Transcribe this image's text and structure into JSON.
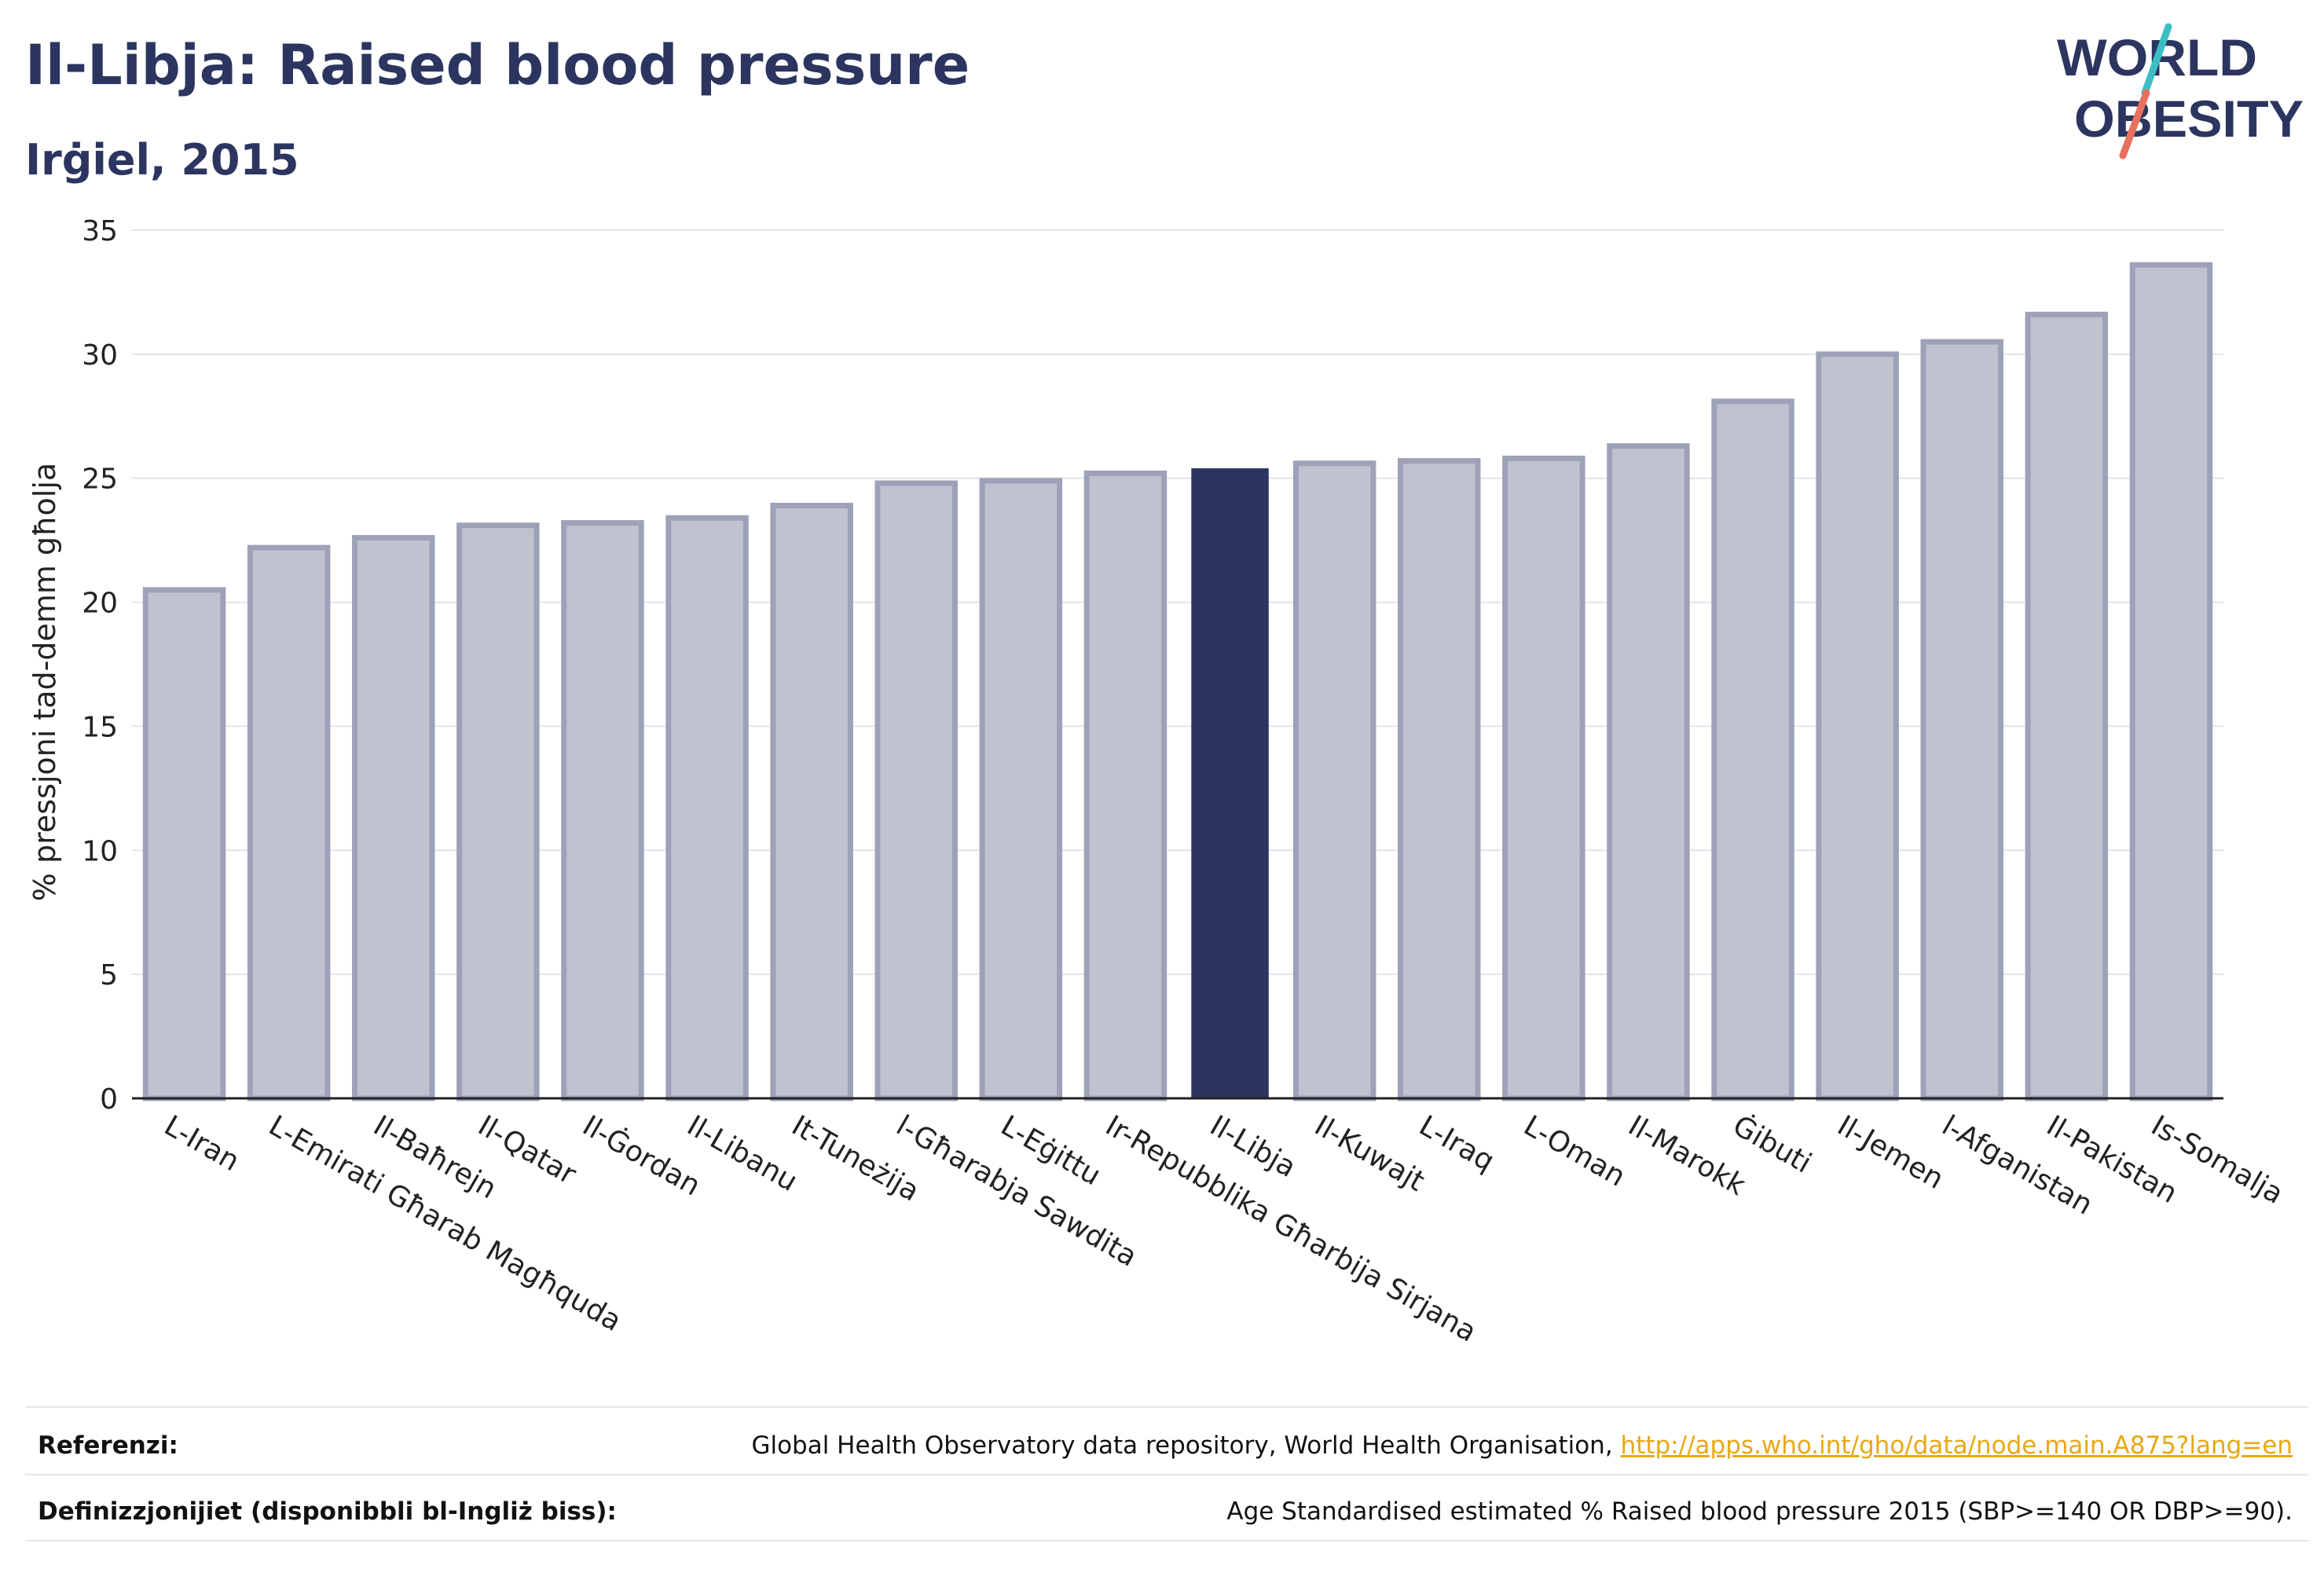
{
  "header": {
    "title": "Il-Libja: Raised blood pressure",
    "subtitle": "Irġiel, 2015"
  },
  "logo": {
    "line1": "WORLD",
    "line2": "OBESITY",
    "text_color": "#2b3560",
    "slash_colors": [
      "#3bbfc4",
      "#e8705f"
    ]
  },
  "chart_data": {
    "type": "bar",
    "ylabel": "% pressjoni tad-demm għolja",
    "ylim": [
      0,
      35
    ],
    "yticks": [
      0,
      5,
      10,
      15,
      20,
      25,
      30,
      35
    ],
    "grid": true,
    "highlight": "Il-Libja",
    "colors": {
      "bar": "#bfc2cf",
      "bar_border": "#9da2b8",
      "highlight": "#2b3560",
      "grid": "#e4e4ea",
      "axis": "#222222"
    },
    "categories": [
      "L-Iran",
      "L-Emirati Għarab Magħquda",
      "Il-Baħrejn",
      "Il-Qatar",
      "Il-Ġordan",
      "Il-Libanu",
      "It-Tuneżija",
      "l-Għarabja Sawdita",
      "L-Eġittu",
      "Ir-Repubblika Għarbija Sirjana",
      "Il-Libja",
      "Il-Kuwajt",
      "L-Iraq",
      "L-Oman",
      "Il-Marokk",
      "Ġibuti",
      "Il-Jemen",
      "l-Afganistan",
      "Il-Pakistan",
      "Is-Somalja"
    ],
    "values": [
      20.5,
      22.2,
      22.6,
      23.1,
      23.2,
      23.4,
      23.9,
      24.8,
      24.9,
      25.2,
      25.4,
      25.6,
      25.7,
      25.8,
      26.3,
      28.1,
      30.0,
      30.5,
      31.6,
      33.6
    ]
  },
  "footer": {
    "references_label": "Referenzi:",
    "references_text": "Global Health Observatory data repository, World Health Organisation, ",
    "references_link": "http://apps.who.int/gho/data/node.main.A875?lang=en",
    "definitions_label": "Definizzjonijiet (disponibbli bl-Ingliż biss):",
    "definitions_text": "Age Standardised estimated % Raised blood pressure 2015 (SBP>=140 OR DBP>=90)."
  }
}
